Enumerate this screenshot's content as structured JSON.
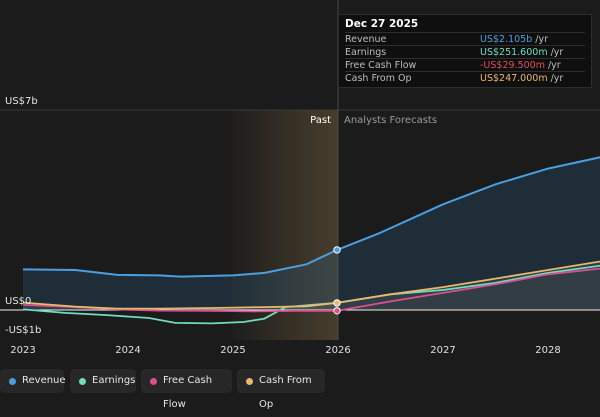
{
  "chart_data": {
    "type": "line",
    "y_axis": {
      "top_label": "US$7b",
      "zero_label": "US$0",
      "bottom_label": "-US$1b",
      "ylim": [
        -1,
        7
      ]
    },
    "x_ticks": [
      "2023",
      "2024",
      "2025",
      "2026",
      "2027",
      "2028"
    ],
    "section_labels": {
      "past": "Past",
      "forecast": "Analysts Forecasts"
    },
    "series": [
      {
        "name": "Revenue",
        "color": "#4a9fde",
        "points": [
          [
            2023.0,
            1.42
          ],
          [
            2023.5,
            1.4
          ],
          [
            2023.9,
            1.23
          ],
          [
            2024.3,
            1.21
          ],
          [
            2024.5,
            1.17
          ],
          [
            2025.0,
            1.21
          ],
          [
            2025.3,
            1.3
          ],
          [
            2025.7,
            1.6
          ],
          [
            2025.99,
            2.105
          ],
          [
            2026.4,
            2.7
          ],
          [
            2027.0,
            3.7
          ],
          [
            2027.5,
            4.4
          ],
          [
            2028.0,
            4.95
          ],
          [
            2028.5,
            5.35
          ]
        ]
      },
      {
        "name": "Earnings",
        "color": "#6fdcc0",
        "points": [
          [
            2023.0,
            0.02
          ],
          [
            2023.4,
            -0.1
          ],
          [
            2023.8,
            -0.18
          ],
          [
            2024.2,
            -0.28
          ],
          [
            2024.45,
            -0.45
          ],
          [
            2024.8,
            -0.47
          ],
          [
            2025.1,
            -0.42
          ],
          [
            2025.3,
            -0.3
          ],
          [
            2025.5,
            0.1
          ],
          [
            2025.99,
            0.2516
          ],
          [
            2026.5,
            0.55
          ],
          [
            2027.0,
            0.7
          ],
          [
            2027.5,
            0.95
          ],
          [
            2028.0,
            1.3
          ],
          [
            2028.5,
            1.55
          ]
        ]
      },
      {
        "name": "Free Cash Flow",
        "color": "#d8518f",
        "points": [
          [
            2023.0,
            0.18
          ],
          [
            2023.5,
            0.1
          ],
          [
            2023.9,
            0.02
          ],
          [
            2024.3,
            -0.02
          ],
          [
            2024.8,
            -0.03
          ],
          [
            2025.2,
            -0.05
          ],
          [
            2025.6,
            -0.03
          ],
          [
            2025.99,
            -0.0295
          ],
          [
            2026.5,
            0.3
          ],
          [
            2027.0,
            0.6
          ],
          [
            2027.5,
            0.9
          ],
          [
            2028.0,
            1.25
          ],
          [
            2028.5,
            1.45
          ]
        ]
      },
      {
        "name": "Cash From Op",
        "color": "#e8b86d",
        "points": [
          [
            2023.0,
            0.26
          ],
          [
            2023.5,
            0.12
          ],
          [
            2023.9,
            0.05
          ],
          [
            2024.3,
            0.05
          ],
          [
            2024.8,
            0.07
          ],
          [
            2025.3,
            0.1
          ],
          [
            2025.7,
            0.13
          ],
          [
            2025.99,
            0.247
          ],
          [
            2026.5,
            0.55
          ],
          [
            2027.0,
            0.8
          ],
          [
            2027.5,
            1.1
          ],
          [
            2028.0,
            1.4
          ],
          [
            2028.5,
            1.7
          ]
        ]
      }
    ]
  },
  "tooltip": {
    "date": "Dec 27 2025",
    "rows": [
      {
        "name": "Revenue",
        "value": "US$2.105b",
        "unit": "/yr",
        "color": "#4a9fde"
      },
      {
        "name": "Earnings",
        "value": "US$251.600m",
        "unit": "/yr",
        "color": "#6fdcc0"
      },
      {
        "name": "Free Cash Flow",
        "value": "-US$29.500m",
        "unit": "/yr",
        "color": "#e0505a"
      },
      {
        "name": "Cash From Op",
        "value": "US$247.000m",
        "unit": "/yr",
        "color": "#e8b86d"
      }
    ]
  },
  "legend": [
    {
      "label": "Revenue",
      "color": "#4a9fde"
    },
    {
      "label": "Earnings",
      "color": "#6fdcc0"
    },
    {
      "label": "Free Cash Flow",
      "color": "#d8518f"
    },
    {
      "label": "Cash From Op",
      "color": "#e8b86d"
    }
  ]
}
